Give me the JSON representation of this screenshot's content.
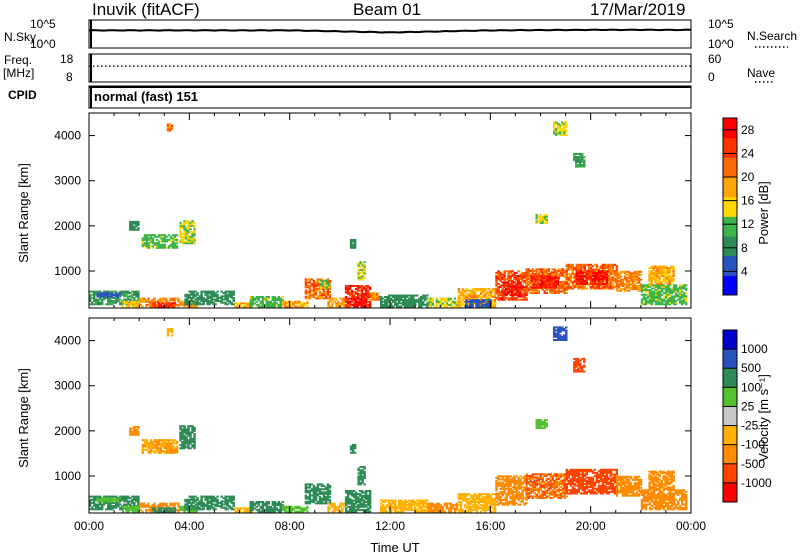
{
  "header": {
    "station": "Inuvik (fitACF)",
    "beam": "Beam 01",
    "date": "17/Mar/2019"
  },
  "strip_labels": {
    "nsky": "N.Sky",
    "nsearch": "N.Search",
    "freq_line1": "Freq.",
    "freq_line2": "[MHz]",
    "nave": "Nave",
    "cpid": "CPID",
    "cpid_value": "normal (fast) 151",
    "noise_left_ticks": [
      "10^5",
      "10^0"
    ],
    "noise_right_ticks": [
      "10^5",
      "10^0"
    ],
    "freq_left_ticks": [
      "18",
      "8"
    ],
    "freq_right_ticks": [
      "60",
      "0"
    ]
  },
  "colors": {
    "power_scale": [
      "#0000ff",
      "#2a52be",
      "#2e8b57",
      "#3cb44b",
      "#ffd700",
      "#ffa500",
      "#ff6a00",
      "#ff3300",
      "#ff0000"
    ],
    "velocity_scale": [
      "#ff0000",
      "#ff4500",
      "#ff8c00",
      "#ffb000",
      "#c8c8c8",
      "#55c030",
      "#2e8b57",
      "#2a52be",
      "#0000cd"
    ]
  },
  "chart_data": [
    {
      "type": "line",
      "title": "N.Sky / N.Search",
      "xlabel": "",
      "ylabel": "",
      "ylim_label": [
        "10^0",
        "10^5"
      ],
      "x": [
        "00:00",
        "04:00",
        "08:00",
        "12:00",
        "16:00",
        "20:00",
        "00:00"
      ],
      "series": [
        {
          "name": "N.Sky",
          "style": "solid",
          "values": [
            3.2,
            3.2,
            3.2,
            2.8,
            3.2,
            3.3,
            3.3
          ]
        },
        {
          "name": "N.Search",
          "style": "dotted",
          "values": [
            3.2,
            3.2,
            3.2,
            2.9,
            3.2,
            3.3,
            3.3
          ]
        }
      ]
    },
    {
      "type": "line",
      "title": "Freq. / Nave",
      "ylim_freq": [
        8,
        18
      ],
      "ylim_nave": [
        0,
        60
      ],
      "x": [
        "00:00",
        "04:00",
        "08:00",
        "12:00",
        "16:00",
        "20:00",
        "00:00"
      ],
      "series": [
        {
          "name": "Freq. [MHz]",
          "style": "solid",
          "values": [
            9.8,
            9.8,
            9.8,
            9.8,
            9.8,
            9.8,
            9.8
          ]
        },
        {
          "name": "Nave",
          "style": "dotted",
          "values": [
            17,
            17,
            17,
            17,
            17,
            17,
            17
          ]
        }
      ]
    },
    {
      "type": "heatmap",
      "title": "",
      "xlabel": "",
      "ylabel": "Slant Range [km]",
      "xlim_hours": [
        0,
        24
      ],
      "ylim": [
        180,
        4500
      ],
      "x_ticks": [],
      "y_ticks": [
        1000,
        2000,
        3000,
        4000
      ],
      "colorbar": {
        "label": "Power [dB]",
        "ticks": [
          4,
          8,
          12,
          16,
          20,
          24,
          28
        ],
        "range": [
          0,
          30
        ]
      },
      "patches": [
        {
          "t": [
            0.0,
            2.0
          ],
          "r": [
            250,
            560
          ],
          "v": 10
        },
        {
          "t": [
            0.3,
            1.2
          ],
          "r": [
            420,
            520
          ],
          "v": 6
        },
        {
          "t": [
            1.3,
            2.0
          ],
          "r": [
            200,
            330
          ],
          "v": 16
        },
        {
          "t": [
            2.0,
            3.6
          ],
          "r": [
            200,
            380
          ],
          "v": 20
        },
        {
          "t": [
            2.5,
            3.4
          ],
          "r": [
            200,
            290
          ],
          "v": 26
        },
        {
          "t": [
            3.6,
            4.3
          ],
          "r": [
            200,
            330
          ],
          "v": 20
        },
        {
          "t": [
            3.8,
            5.8
          ],
          "r": [
            250,
            560
          ],
          "v": 8
        },
        {
          "t": [
            5.8,
            6.5
          ],
          "r": [
            200,
            300
          ],
          "v": 18
        },
        {
          "t": [
            6.4,
            7.7
          ],
          "r": [
            200,
            420
          ],
          "v": 12
        },
        {
          "t": [
            7.7,
            8.7
          ],
          "r": [
            200,
            330
          ],
          "v": 18
        },
        {
          "t": [
            8.6,
            9.6
          ],
          "r": [
            380,
            820
          ],
          "v": 22
        },
        {
          "t": [
            9.2,
            9.6
          ],
          "r": [
            600,
            780
          ],
          "v": 13
        },
        {
          "t": [
            9.5,
            10.2
          ],
          "r": [
            200,
            380
          ],
          "v": 18
        },
        {
          "t": [
            10.2,
            11.2
          ],
          "r": [
            200,
            680
          ],
          "v": 26
        },
        {
          "t": [
            10.5,
            11.0
          ],
          "r": [
            200,
            400
          ],
          "v": 30
        },
        {
          "t": [
            11.2,
            11.6
          ],
          "r": [
            350,
            520
          ],
          "v": 20
        },
        {
          "t": [
            11.6,
            13.5
          ],
          "r": [
            200,
            480
          ],
          "v": 8
        },
        {
          "t": [
            13.5,
            14.7
          ],
          "r": [
            200,
            380
          ],
          "v": 14
        },
        {
          "t": [
            14.7,
            16.2
          ],
          "r": [
            200,
            620
          ],
          "v": 18
        },
        {
          "t": [
            15.0,
            16.0
          ],
          "r": [
            200,
            360
          ],
          "v": 6
        },
        {
          "t": [
            16.2,
            17.4
          ],
          "r": [
            350,
            1000
          ],
          "v": 24
        },
        {
          "t": [
            16.5,
            17.2
          ],
          "r": [
            450,
            750
          ],
          "v": 28
        },
        {
          "t": [
            17.4,
            19.0
          ],
          "r": [
            500,
            1060
          ],
          "v": 22
        },
        {
          "t": [
            17.6,
            18.7
          ],
          "r": [
            620,
            900
          ],
          "v": 27
        },
        {
          "t": [
            19.0,
            21.0
          ],
          "r": [
            600,
            1150
          ],
          "v": 22
        },
        {
          "t": [
            19.4,
            20.6
          ],
          "r": [
            700,
            1000
          ],
          "v": 28
        },
        {
          "t": [
            21.0,
            22.0
          ],
          "r": [
            550,
            1000
          ],
          "v": 20
        },
        {
          "t": [
            22.0,
            23.8
          ],
          "r": [
            250,
            700
          ],
          "v": 12
        },
        {
          "t": [
            22.3,
            23.3
          ],
          "r": [
            700,
            1100
          ],
          "v": 18
        },
        {
          "t": [
            1.6,
            2.0
          ],
          "r": [
            1900,
            2100
          ],
          "v": 8
        },
        {
          "t": [
            2.1,
            3.5
          ],
          "r": [
            1500,
            1800
          ],
          "v": 12
        },
        {
          "t": [
            3.6,
            4.2
          ],
          "r": [
            1600,
            2100
          ],
          "v": 14
        },
        {
          "t": [
            10.4,
            10.6
          ],
          "r": [
            1500,
            1700
          ],
          "v": 8
        },
        {
          "t": [
            10.7,
            11.0
          ],
          "r": [
            800,
            1200
          ],
          "v": 14
        },
        {
          "t": [
            18.5,
            19.0
          ],
          "r": [
            4000,
            4300
          ],
          "v": 14
        },
        {
          "t": [
            19.3,
            19.7
          ],
          "r": [
            3300,
            3600
          ],
          "v": 10
        },
        {
          "t": [
            17.8,
            18.2
          ],
          "r": [
            2050,
            2250
          ],
          "v": 14
        },
        {
          "t": [
            3.1,
            3.3
          ],
          "r": [
            4100,
            4250
          ],
          "v": 22
        }
      ]
    },
    {
      "type": "heatmap",
      "title": "",
      "xlabel": "Time UT",
      "ylabel": "Slant Range [km]",
      "xlim_hours": [
        0,
        24
      ],
      "ylim": [
        180,
        4500
      ],
      "x_ticks": [
        "00:00",
        "04:00",
        "08:00",
        "12:00",
        "16:00",
        "20:00",
        "00:00"
      ],
      "y_ticks": [
        1000,
        2000,
        3000,
        4000
      ],
      "colorbar": {
        "label": "Velocity [m s⁻¹]",
        "ticks": [
          "1000",
          "500",
          "100",
          "25",
          "-25",
          "-100",
          "-500",
          "-1000"
        ]
      },
      "patches": [
        {
          "t": [
            0.0,
            2.0
          ],
          "r": [
            250,
            560
          ],
          "v": 150
        },
        {
          "t": [
            0.3,
            1.2
          ],
          "r": [
            420,
            520
          ],
          "v": 50
        },
        {
          "t": [
            1.3,
            2.0
          ],
          "r": [
            200,
            330
          ],
          "v": 60
        },
        {
          "t": [
            2.0,
            3.6
          ],
          "r": [
            200,
            380
          ],
          "v": -150
        },
        {
          "t": [
            2.5,
            3.4
          ],
          "r": [
            200,
            290
          ],
          "v": 150
        },
        {
          "t": [
            3.6,
            4.3
          ],
          "r": [
            200,
            330
          ],
          "v": 80
        },
        {
          "t": [
            3.8,
            5.8
          ],
          "r": [
            250,
            560
          ],
          "v": 150
        },
        {
          "t": [
            5.8,
            6.5
          ],
          "r": [
            200,
            300
          ],
          "v": -60
        },
        {
          "t": [
            6.4,
            7.7
          ],
          "r": [
            200,
            420
          ],
          "v": 150
        },
        {
          "t": [
            7.7,
            8.7
          ],
          "r": [
            200,
            330
          ],
          "v": 80
        },
        {
          "t": [
            8.6,
            9.6
          ],
          "r": [
            380,
            820
          ],
          "v": 300
        },
        {
          "t": [
            9.5,
            10.2
          ],
          "r": [
            200,
            380
          ],
          "v": -60
        },
        {
          "t": [
            10.2,
            11.2
          ],
          "r": [
            200,
            680
          ],
          "v": 150
        },
        {
          "t": [
            11.6,
            13.5
          ],
          "r": [
            200,
            480
          ],
          "v": -60
        },
        {
          "t": [
            13.5,
            14.7
          ],
          "r": [
            200,
            380
          ],
          "v": -150
        },
        {
          "t": [
            14.7,
            16.2
          ],
          "r": [
            200,
            620
          ],
          "v": -80
        },
        {
          "t": [
            16.2,
            17.4
          ],
          "r": [
            350,
            1000
          ],
          "v": -400
        },
        {
          "t": [
            17.4,
            19.0
          ],
          "r": [
            500,
            1060
          ],
          "v": -500
        },
        {
          "t": [
            19.0,
            21.0
          ],
          "r": [
            600,
            1150
          ],
          "v": -600
        },
        {
          "t": [
            21.0,
            22.0
          ],
          "r": [
            550,
            1000
          ],
          "v": -300
        },
        {
          "t": [
            22.0,
            23.8
          ],
          "r": [
            250,
            700
          ],
          "v": -150
        },
        {
          "t": [
            22.3,
            23.3
          ],
          "r": [
            700,
            1100
          ],
          "v": -400
        },
        {
          "t": [
            1.6,
            2.0
          ],
          "r": [
            1900,
            2100
          ],
          "v": -150
        },
        {
          "t": [
            2.1,
            3.5
          ],
          "r": [
            1500,
            1800
          ],
          "v": -100
        },
        {
          "t": [
            3.6,
            4.2
          ],
          "r": [
            1600,
            2100
          ],
          "v": 300
        },
        {
          "t": [
            10.4,
            10.6
          ],
          "r": [
            1500,
            1700
          ],
          "v": 300
        },
        {
          "t": [
            10.7,
            11.0
          ],
          "r": [
            800,
            1200
          ],
          "v": 150
        },
        {
          "t": [
            18.5,
            19.0
          ],
          "r": [
            4000,
            4300
          ],
          "v": 700
        },
        {
          "t": [
            19.3,
            19.7
          ],
          "r": [
            3300,
            3600
          ],
          "v": -600
        },
        {
          "t": [
            17.8,
            18.2
          ],
          "r": [
            2050,
            2250
          ],
          "v": 60
        },
        {
          "t": [
            3.1,
            3.3
          ],
          "r": [
            4100,
            4250
          ],
          "v": -60
        }
      ]
    }
  ]
}
